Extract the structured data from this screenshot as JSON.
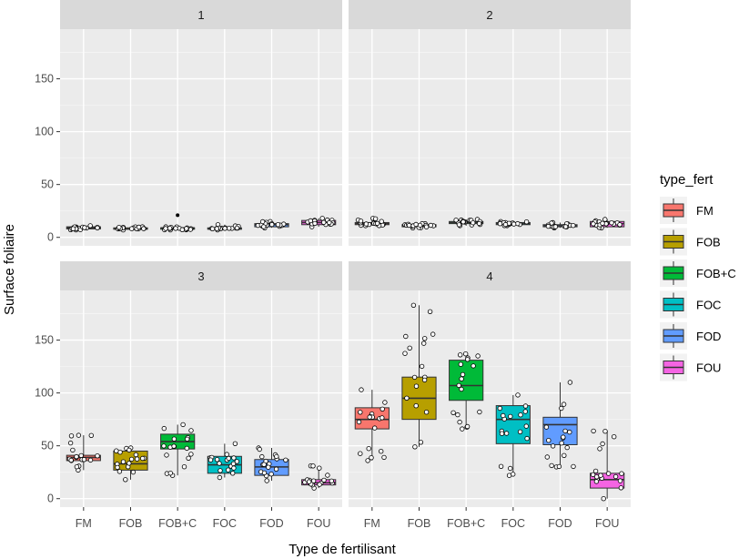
{
  "chart_data": {
    "type": "box",
    "xlabel": "Type de fertilisant",
    "ylabel": "Surface foliaire",
    "categories": [
      "FM",
      "FOB",
      "FOB+C",
      "FOC",
      "FOD",
      "FOU"
    ],
    "ylim": [
      -8,
      197
    ],
    "yticks": [
      0,
      50,
      100,
      150
    ],
    "grid": true,
    "legend": {
      "title": "type_fert",
      "position": "right",
      "entries": [
        "FM",
        "FOB",
        "FOB+C",
        "FOC",
        "FOD",
        "FOU"
      ]
    },
    "colors": {
      "FM": "#F8766D",
      "FOB": "#B79F00",
      "FOB+C": "#00BA38",
      "FOC": "#00BFC4",
      "FOD": "#619CFF",
      "FOU": "#F564E3"
    },
    "panels": [
      {
        "label": "1",
        "boxes": [
          {
            "category": "FM",
            "min": 7,
            "q1": 8,
            "median": 9,
            "q3": 10,
            "max": 11
          },
          {
            "category": "FOB",
            "min": 7,
            "q1": 8,
            "median": 8,
            "q3": 9,
            "max": 10
          },
          {
            "category": "FOB+C",
            "min": 7,
            "q1": 8,
            "median": 9,
            "q3": 9,
            "max": 10,
            "outliers": [
              21
            ]
          },
          {
            "category": "FOC",
            "min": 7,
            "q1": 8,
            "median": 8,
            "q3": 9,
            "max": 12
          },
          {
            "category": "FOD",
            "min": 9,
            "q1": 10,
            "median": 12,
            "q3": 13,
            "max": 15
          },
          {
            "category": "FOU",
            "min": 10,
            "q1": 12,
            "median": 14,
            "q3": 16,
            "max": 18
          }
        ]
      },
      {
        "label": "2",
        "boxes": [
          {
            "category": "FM",
            "min": 11,
            "q1": 12,
            "median": 13,
            "q3": 14,
            "max": 18
          },
          {
            "category": "FOB",
            "min": 9,
            "q1": 10,
            "median": 11,
            "q3": 12,
            "max": 13
          },
          {
            "category": "FOB+C",
            "min": 11,
            "q1": 13,
            "median": 14,
            "q3": 15,
            "max": 17
          },
          {
            "category": "FOC",
            "min": 11,
            "q1": 12,
            "median": 13,
            "q3": 14,
            "max": 15
          },
          {
            "category": "FOD",
            "min": 9,
            "q1": 10,
            "median": 11,
            "q3": 12,
            "max": 14
          },
          {
            "category": "FOU",
            "min": 9,
            "q1": 10,
            "median": 13,
            "q3": 15,
            "max": 17
          }
        ]
      },
      {
        "label": "3",
        "boxes": [
          {
            "category": "FM",
            "min": 27,
            "q1": 36,
            "median": 39,
            "q3": 41,
            "max": 60
          },
          {
            "category": "FOB",
            "min": 18,
            "q1": 27,
            "median": 33,
            "q3": 45,
            "max": 48
          },
          {
            "category": "FOB+C",
            "min": 22,
            "q1": 47,
            "median": 54,
            "q3": 61,
            "max": 70
          },
          {
            "category": "FOC",
            "min": 20,
            "q1": 24,
            "median": 32,
            "q3": 40,
            "max": 52
          },
          {
            "category": "FOD",
            "min": 17,
            "q1": 22,
            "median": 30,
            "q3": 37,
            "max": 48
          },
          {
            "category": "FOU",
            "min": 10,
            "q1": 13,
            "median": 15,
            "q3": 18,
            "max": 31
          }
        ]
      },
      {
        "label": "4",
        "boxes": [
          {
            "category": "FM",
            "min": 36,
            "q1": 66,
            "median": 75,
            "q3": 86,
            "max": 103
          },
          {
            "category": "FOB",
            "min": 49,
            "q1": 75,
            "median": 95,
            "q3": 115,
            "max": 183
          },
          {
            "category": "FOB+C",
            "min": 66,
            "q1": 93,
            "median": 107,
            "q3": 131,
            "max": 137
          },
          {
            "category": "FOC",
            "min": 22,
            "q1": 52,
            "median": 75,
            "q3": 88,
            "max": 98
          },
          {
            "category": "FOD",
            "min": 30,
            "q1": 51,
            "median": 70,
            "q3": 77,
            "max": 110
          },
          {
            "category": "FOU",
            "min": 0,
            "q1": 10,
            "median": 18,
            "q3": 24,
            "max": 64
          }
        ]
      }
    ]
  }
}
